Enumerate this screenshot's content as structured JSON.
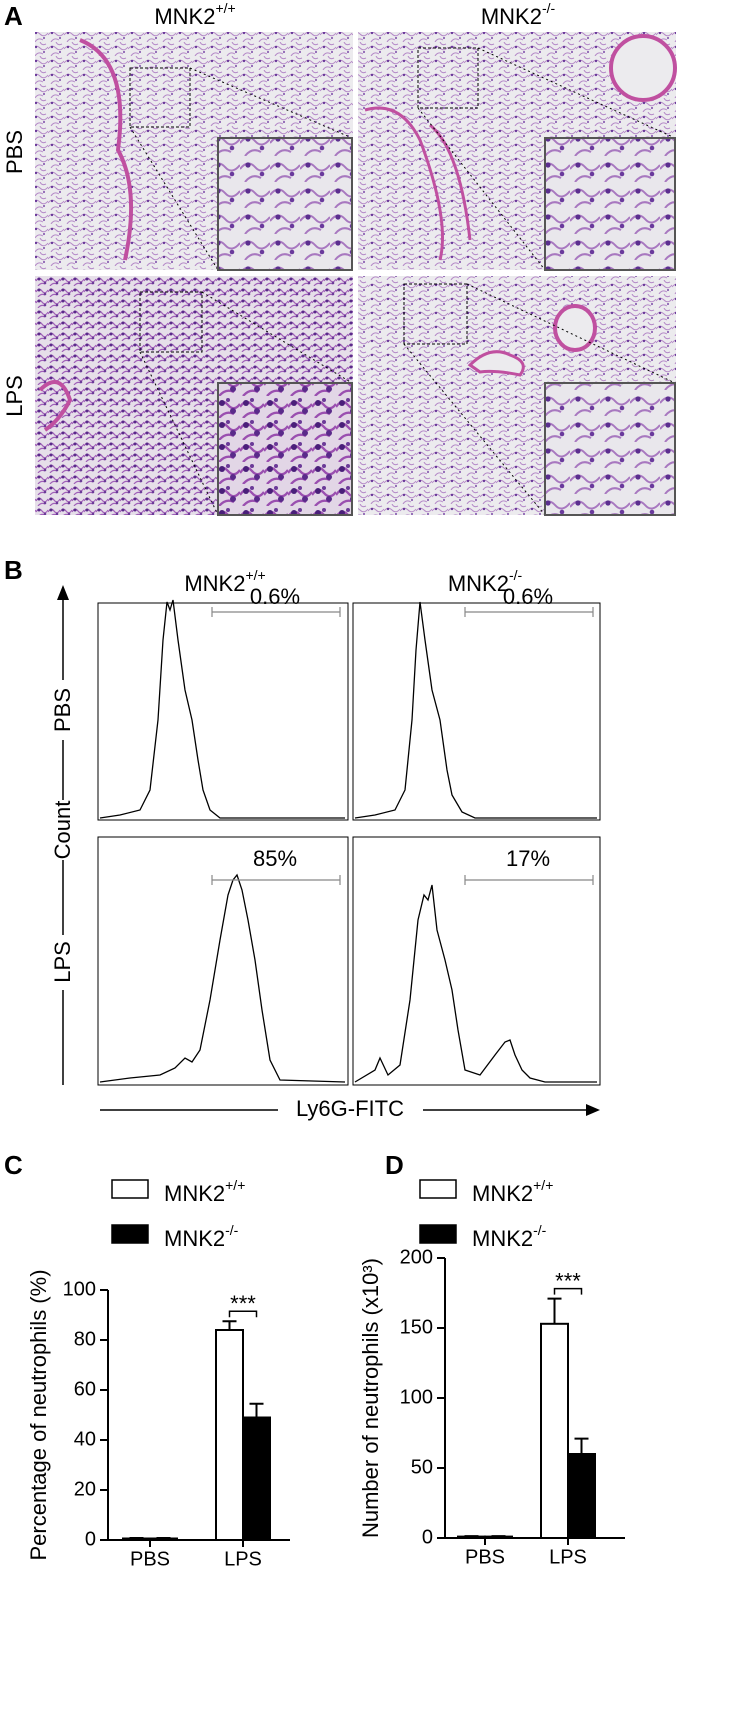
{
  "figure": {
    "panel_labels": [
      "A",
      "B",
      "C",
      "D"
    ],
    "genotypes": [
      "MNK2+/+",
      "MNK2-/-"
    ],
    "treatments": [
      "PBS",
      "LPS"
    ]
  },
  "flow": {
    "y_label": "Count",
    "x_label": "Ly6G-FITC",
    "gates": [
      [
        "0.6%",
        "0.6%"
      ],
      [
        "85%",
        "17%"
      ]
    ]
  },
  "chart_data": [
    {
      "type": "bar",
      "y_label": "Percentage of neutrophils (%)",
      "categories": [
        "PBS",
        "LPS"
      ],
      "series": [
        {
          "name": "MNK2+/+",
          "color": "#ffffff",
          "values": [
            0.6,
            84
          ],
          "errors": [
            0.2,
            3.5
          ]
        },
        {
          "name": "MNK2-/-",
          "color": "#000000",
          "values": [
            0.6,
            49
          ],
          "errors": [
            0.2,
            5.5
          ]
        }
      ],
      "ylim": [
        0,
        100
      ],
      "yticks": [
        0,
        20,
        40,
        60,
        80,
        100
      ],
      "annotation": "***",
      "grid": false
    },
    {
      "type": "bar",
      "y_label": "Number of neutrophils (x10³)",
      "categories": [
        "PBS",
        "LPS"
      ],
      "series": [
        {
          "name": "MNK2+/+",
          "color": "#ffffff",
          "values": [
            1,
            153
          ],
          "errors": [
            0.3,
            18
          ]
        },
        {
          "name": "MNK2-/-",
          "color": "#000000",
          "values": [
            1,
            60
          ],
          "errors": [
            0.3,
            11
          ]
        }
      ],
      "ylim": [
        0,
        200
      ],
      "yticks": [
        0,
        50,
        100,
        150,
        200
      ],
      "annotation": "***",
      "grid": false
    }
  ]
}
